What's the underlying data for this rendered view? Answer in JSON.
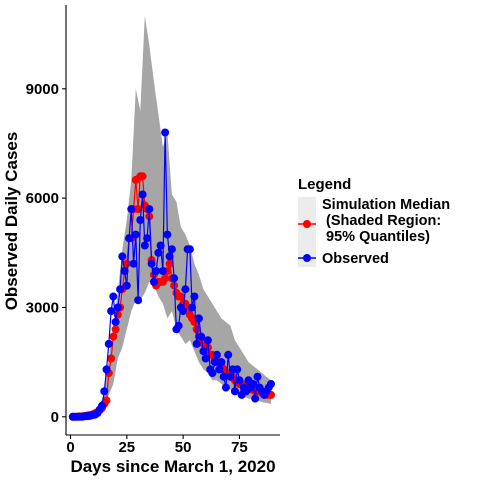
{
  "chart_data": {
    "type": "line",
    "title": "",
    "xlabel": "Days since March 1, 2020",
    "ylabel": "Observed Daily Cases",
    "xlim": [
      -2,
      93
    ],
    "ylim": [
      -500,
      11300
    ],
    "xticks": [
      0,
      25,
      50,
      75
    ],
    "yticks": [
      0,
      3000,
      6000,
      9000
    ],
    "grid": false,
    "legend": {
      "title": "Legend",
      "position": "right",
      "entries": [
        {
          "lines": [
            "Simulation Median",
            " (Shaded Region:",
            " 95% Quantiles)"
          ],
          "color": "#ff0000"
        },
        {
          "lines": [
            "Observed"
          ],
          "color": "#0000ff"
        }
      ]
    },
    "band": {
      "name": "95% Quantiles",
      "color": "#a6a6a6",
      "upper": [
        [
          1,
          0
        ],
        [
          4,
          20
        ],
        [
          7,
          60
        ],
        [
          10,
          130
        ],
        [
          13,
          300
        ],
        [
          15,
          700
        ],
        [
          17,
          1600
        ],
        [
          19,
          2500
        ],
        [
          21,
          3400
        ],
        [
          23,
          4600
        ],
        [
          25,
          5400
        ],
        [
          27,
          6500
        ],
        [
          29,
          9000
        ],
        [
          31,
          8400
        ],
        [
          33,
          11000
        ],
        [
          35,
          10200
        ],
        [
          37,
          9200
        ],
        [
          39,
          8300
        ],
        [
          41,
          7400
        ],
        [
          43,
          7800
        ],
        [
          45,
          6100
        ],
        [
          47,
          5900
        ],
        [
          49,
          5200
        ],
        [
          51,
          5000
        ],
        [
          53,
          4700
        ],
        [
          55,
          4200
        ],
        [
          57,
          3900
        ],
        [
          59,
          3500
        ],
        [
          61,
          3300
        ],
        [
          63,
          3100
        ],
        [
          65,
          2900
        ],
        [
          67,
          2700
        ],
        [
          69,
          2600
        ],
        [
          71,
          2500
        ],
        [
          73,
          2100
        ],
        [
          75,
          1900
        ],
        [
          77,
          1700
        ],
        [
          79,
          1500
        ],
        [
          81,
          1400
        ],
        [
          83,
          1300
        ],
        [
          85,
          1200
        ],
        [
          87,
          1100
        ],
        [
          89,
          1000
        ]
      ],
      "lower": [
        [
          1,
          0
        ],
        [
          4,
          0
        ],
        [
          7,
          10
        ],
        [
          10,
          30
        ],
        [
          13,
          80
        ],
        [
          15,
          200
        ],
        [
          17,
          600
        ],
        [
          19,
          900
        ],
        [
          21,
          1600
        ],
        [
          23,
          1900
        ],
        [
          25,
          2400
        ],
        [
          27,
          2900
        ],
        [
          29,
          3200
        ],
        [
          31,
          3200
        ],
        [
          33,
          3400
        ],
        [
          35,
          3700
        ],
        [
          37,
          3600
        ],
        [
          39,
          3300
        ],
        [
          41,
          3100
        ],
        [
          43,
          2700
        ],
        [
          45,
          2900
        ],
        [
          47,
          2400
        ],
        [
          49,
          2200
        ],
        [
          51,
          2000
        ],
        [
          53,
          2100
        ],
        [
          55,
          1800
        ],
        [
          57,
          1500
        ],
        [
          59,
          1300
        ],
        [
          61,
          1200
        ],
        [
          63,
          1000
        ],
        [
          65,
          1000
        ],
        [
          67,
          900
        ],
        [
          69,
          800
        ],
        [
          71,
          750
        ],
        [
          73,
          700
        ],
        [
          75,
          600
        ],
        [
          77,
          550
        ],
        [
          79,
          500
        ],
        [
          81,
          480
        ],
        [
          83,
          450
        ],
        [
          85,
          400
        ],
        [
          87,
          380
        ],
        [
          89,
          350
        ]
      ]
    },
    "series": [
      {
        "name": "Simulation Median",
        "color": "#ff0000",
        "x": [
          1,
          2,
          3,
          4,
          5,
          6,
          7,
          8,
          9,
          10,
          11,
          12,
          13,
          14,
          15,
          16,
          17,
          18,
          19,
          20,
          21,
          22,
          23,
          24,
          25,
          26,
          27,
          28,
          29,
          30,
          31,
          32,
          33,
          34,
          35,
          36,
          37,
          38,
          39,
          40,
          41,
          42,
          43,
          44,
          45,
          46,
          47,
          48,
          49,
          50,
          51,
          52,
          53,
          54,
          55,
          56,
          57,
          58,
          59,
          60,
          61,
          62,
          63,
          64,
          65,
          66,
          67,
          68,
          69,
          70,
          71,
          72,
          73,
          74,
          75,
          76,
          77,
          78,
          79,
          80,
          81,
          82,
          83,
          84,
          85,
          86,
          87,
          88,
          89
        ],
        "y": [
          0,
          0,
          0,
          10,
          10,
          20,
          30,
          40,
          50,
          70,
          100,
          130,
          180,
          240,
          350,
          450,
          1200,
          1600,
          2200,
          2400,
          2800,
          3000,
          3500,
          4000,
          4200,
          4900,
          4900,
          5700,
          6500,
          5700,
          6600,
          6600,
          5800,
          5700,
          5500,
          4300,
          3900,
          3600,
          3700,
          3700,
          3700,
          3800,
          4000,
          4200,
          3800,
          3600,
          3400,
          3300,
          3300,
          3100,
          3100,
          3000,
          2800,
          2700,
          2600,
          2400,
          2200,
          2100,
          2000,
          1900,
          1900,
          1700,
          1700,
          1600,
          1500,
          1500,
          1400,
          1300,
          1200,
          1200,
          1100,
          1100,
          1000,
          1000,
          900,
          900,
          850,
          800,
          800,
          750,
          750,
          700,
          700,
          700,
          650,
          650,
          600,
          600,
          600
        ]
      },
      {
        "name": "Observed",
        "color": "#0000ff",
        "x": [
          1,
          2,
          3,
          4,
          5,
          6,
          7,
          8,
          9,
          10,
          11,
          12,
          13,
          14,
          15,
          16,
          17,
          18,
          19,
          20,
          21,
          22,
          23,
          24,
          25,
          26,
          27,
          28,
          29,
          30,
          31,
          32,
          33,
          34,
          35,
          36,
          37,
          38,
          39,
          40,
          41,
          42,
          43,
          44,
          45,
          46,
          47,
          48,
          49,
          50,
          51,
          52,
          53,
          54,
          55,
          56,
          57,
          58,
          59,
          60,
          61,
          62,
          63,
          64,
          65,
          66,
          67,
          68,
          69,
          70,
          71,
          72,
          73,
          74,
          75,
          76,
          77,
          78,
          79,
          80,
          81,
          82,
          83,
          84,
          85,
          86,
          87,
          88,
          89
        ],
        "y": [
          0,
          0,
          0,
          0,
          0,
          10,
          20,
          20,
          30,
          50,
          60,
          100,
          200,
          300,
          700,
          1300,
          2000,
          2900,
          3300,
          2600,
          3000,
          3500,
          4400,
          4000,
          3600,
          4900,
          5700,
          4200,
          5000,
          3200,
          5400,
          6100,
          4700,
          4900,
          5700,
          4200,
          3700,
          4000,
          4500,
          4700,
          4000,
          7800,
          5000,
          4400,
          4600,
          3800,
          2400,
          2500,
          3000,
          2900,
          3500,
          4600,
          4600,
          3000,
          3300,
          2000,
          2700,
          2200,
          1800,
          1600,
          2100,
          1300,
          1200,
          1500,
          1700,
          1300,
          1500,
          1100,
          800,
          1700,
          1100,
          1300,
          700,
          1300,
          1000,
          600,
          800,
          700,
          1000,
          800,
          900,
          500,
          1100,
          800,
          700,
          600,
          700,
          800,
          900
        ]
      }
    ]
  }
}
